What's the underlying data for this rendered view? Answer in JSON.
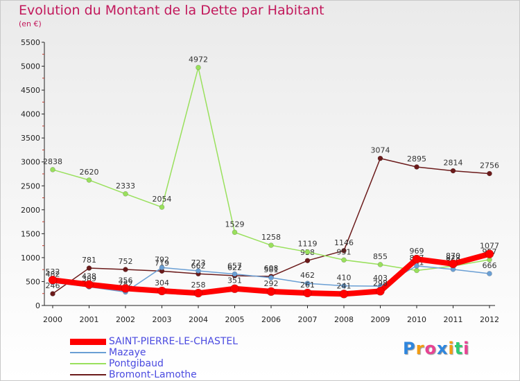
{
  "chart_data": {
    "type": "line",
    "title": "Evolution du Montant de la Dette par Habitant",
    "subtitle": "(en €)",
    "xlabel": "",
    "ylabel": "",
    "x": [
      "2000",
      "2001",
      "2002",
      "2003",
      "2004",
      "2005",
      "2006",
      "2007",
      "2008",
      "2009",
      "2010",
      "2011",
      "2012"
    ],
    "ylim": [
      0,
      5500
    ],
    "yticks": [
      0,
      500,
      1000,
      1500,
      2000,
      2500,
      3000,
      3500,
      4000,
      4500,
      5000,
      5500
    ],
    "grid": false,
    "legend_position": "bottom-left",
    "series": [
      {
        "name": "SAINT-PIERRE-LE-CHASTEL",
        "color": "#ff0000",
        "values": [
          532,
          438,
          356,
          304,
          258,
          351,
          292,
          261,
          241,
          298,
          969,
          870,
          1077
        ]
      },
      {
        "name": "Mazaye",
        "color": "#6a9fd4",
        "values": [
          482,
          389,
          282,
          792,
          723,
          657,
          581,
          462,
          410,
          403,
          827,
          755,
          666
        ]
      },
      {
        "name": "Pontgibaud",
        "color": "#99e05c",
        "values": [
          2838,
          2620,
          2333,
          2054,
          4972,
          1529,
          1258,
          1119,
          951,
          855,
          731,
          823,
          957
        ]
      },
      {
        "name": "Bromont-Lamothe",
        "color": "#6b1a1a",
        "values": [
          246,
          781,
          752,
          719,
          662,
          622,
          608,
          938,
          1146,
          3074,
          2895,
          2814,
          2756
        ]
      }
    ]
  },
  "logo": {
    "text": "Proxiti",
    "colors": [
      "#2e86de",
      "#f39c12",
      "#e84393",
      "#2e86de",
      "#f39c12",
      "#2ecc71",
      "#e84393"
    ]
  }
}
